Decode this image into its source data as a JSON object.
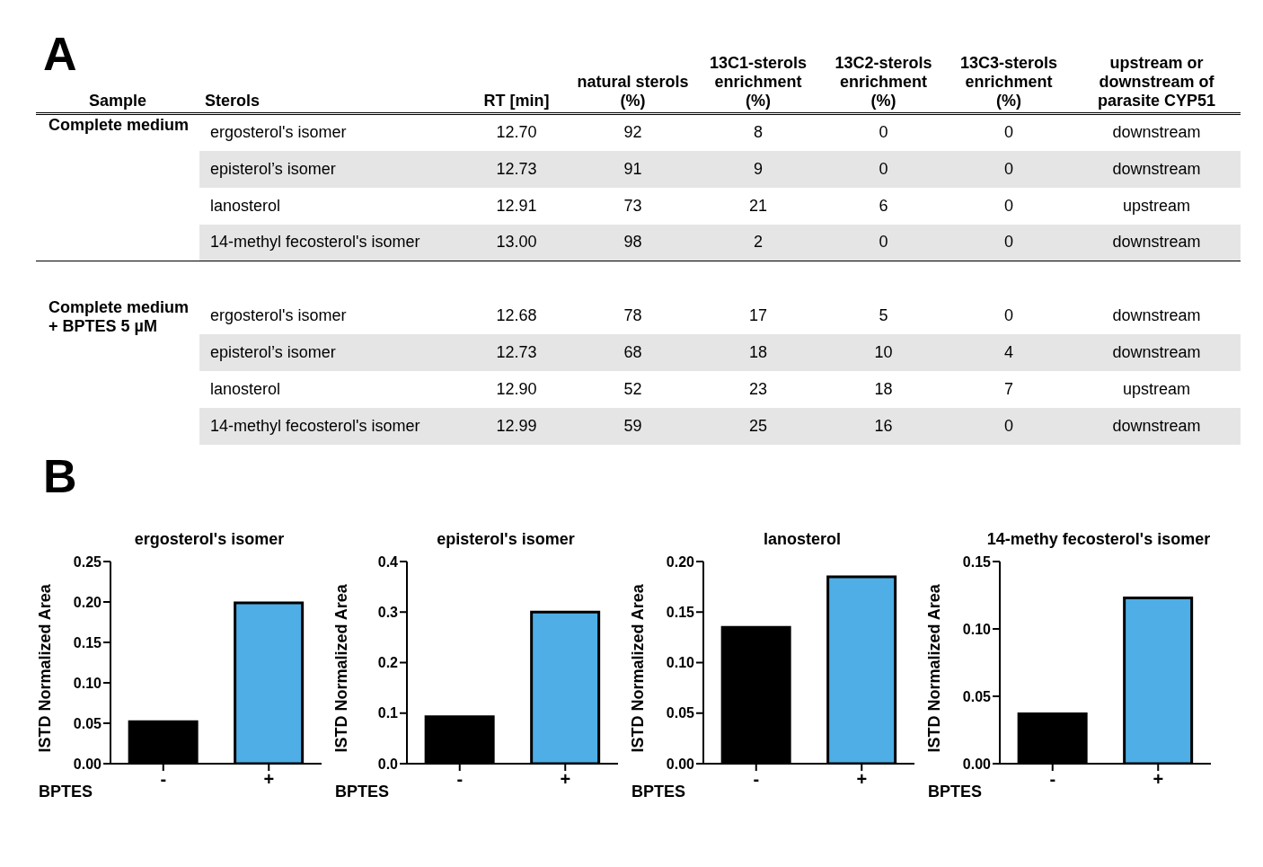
{
  "chart_data": [
    {
      "type": "other",
      "title": "A",
      "annotations": [
        "Sample",
        "Sterols",
        "RT [min]",
        "natural sterols (%)",
        "13C1-sterols enrichment (%)",
        "13C2-sterols enrichment (%)",
        "13C3-sterols enrichment (%)",
        "upstream or downstream of parasite CYP51",
        "Complete medium",
        "ergosterol's isomer",
        "12.70",
        "92",
        "8",
        "0",
        "0",
        "downstream",
        "episterol’s isomer",
        "12.73",
        "91",
        "9",
        "0",
        "0",
        "downstream",
        "lanosterol",
        "12.91",
        "73",
        "21",
        "6",
        "0",
        "upstream",
        "14-methyl fecosterol's isomer",
        "13.00",
        "98",
        "2",
        "0",
        "0",
        "downstream",
        "Complete medium + BPTES 5 µM",
        "ergosterol's isomer",
        "12.68",
        "78",
        "17",
        "5",
        "0",
        "downstream",
        "episterol’s isomer",
        "12.73",
        "68",
        "18",
        "10",
        "4",
        "downstream",
        "lanosterol",
        "12.90",
        "52",
        "23",
        "18",
        "7",
        "upstream",
        "14-methyl fecosterol's isomer",
        "12.99",
        "59",
        "25",
        "16",
        "0",
        "downstream"
      ]
    },
    {
      "type": "bar",
      "title": "ergosterol's isomer",
      "annotations": [
        "B"
      ],
      "xlabel": "BPTES",
      "ylabel": "ISTD Normalized Area",
      "categories": [
        "-",
        "+"
      ],
      "values": [
        0.052,
        0.199
      ],
      "colors": [
        "#000000",
        "#4eaee5"
      ],
      "ylim": [
        0,
        0.25
      ],
      "yticks": [
        {
          "value": 0,
          "label": "0.00"
        },
        {
          "value": 0.05,
          "label": "0.05"
        },
        {
          "value": 0.1,
          "label": "0.10"
        },
        {
          "value": 0.15,
          "label": "0.15"
        },
        {
          "value": 0.2,
          "label": "0.20"
        },
        {
          "value": 0.25,
          "label": "0.25"
        }
      ]
    },
    {
      "type": "bar",
      "title": "episterol's isomer",
      "xlabel": "BPTES",
      "ylabel": "ISTD Normalized Area",
      "categories": [
        "-",
        "+"
      ],
      "values": [
        0.093,
        0.3
      ],
      "colors": [
        "#000000",
        "#4eaee5"
      ],
      "ylim": [
        0,
        0.4
      ],
      "yticks": [
        {
          "value": 0,
          "label": "0.0"
        },
        0.1,
        0.2,
        0.3,
        0.4
      ]
    },
    {
      "type": "bar",
      "title": "lanosterol",
      "xlabel": "BPTES",
      "ylabel": "ISTD Normalized Area",
      "categories": [
        "-",
        "+"
      ],
      "values": [
        0.135,
        0.185
      ],
      "colors": [
        "#000000",
        "#4eaee5"
      ],
      "ylim": [
        0,
        0.2
      ],
      "yticks": [
        {
          "value": 0,
          "label": "0.00"
        },
        {
          "value": 0.05,
          "label": "0.05"
        },
        {
          "value": 0.1,
          "label": "0.10"
        },
        {
          "value": 0.15,
          "label": "0.15"
        },
        {
          "value": 0.2,
          "label": "0.20"
        }
      ]
    },
    {
      "type": "bar",
      "title": "14-methy fecosterol's isomer",
      "xlabel": "BPTES",
      "ylabel": "ISTD Normalized Area",
      "categories": [
        "-",
        "+"
      ],
      "values": [
        0.037,
        0.123
      ],
      "colors": [
        "#000000",
        "#4eaee5"
      ],
      "ylim": [
        0,
        0.15
      ],
      "yticks": [
        {
          "value": 0,
          "label": "0.00"
        },
        {
          "value": 0.05,
          "label": "0.05"
        },
        {
          "value": 0.1,
          "label": "0.10"
        },
        {
          "value": 0.15,
          "label": "0.15"
        }
      ]
    }
  ]
}
